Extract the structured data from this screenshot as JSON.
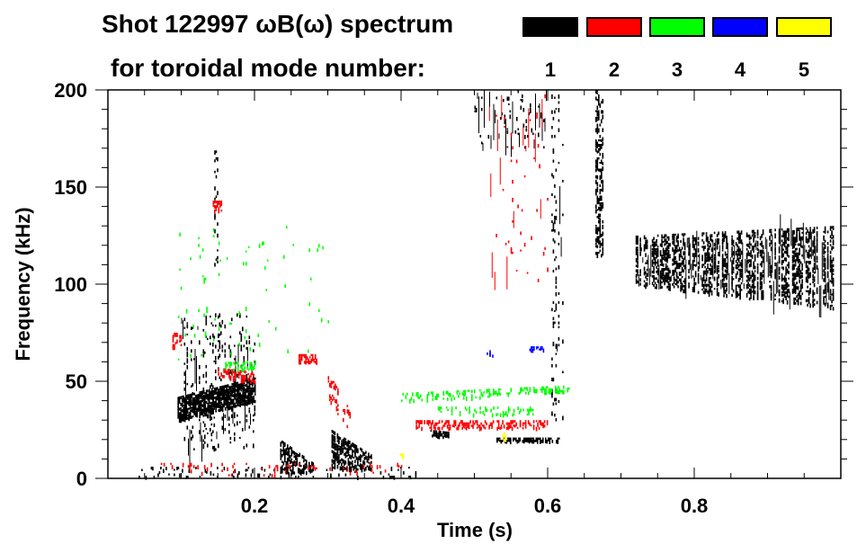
{
  "chart_data": {
    "type": "heatmap",
    "title_line1": "Shot 122997 ωB(ω) spectrum",
    "title_line2": "for toroidal mode number:",
    "xlabel": "Time (s)",
    "ylabel": "Frequency (kHz)",
    "xlim": [
      0,
      1.0
    ],
    "ylim": [
      0,
      200
    ],
    "xticks": [
      0.2,
      0.4,
      0.6,
      0.8
    ],
    "xtick_labels": [
      "0.2",
      "0.4",
      "0.6",
      "0.8"
    ],
    "yticks": [
      0,
      50,
      100,
      150,
      200
    ],
    "ytick_labels": [
      "0",
      "50",
      "100",
      "150",
      "200"
    ],
    "x_minor_step": 0.05,
    "y_minor_step": 10,
    "legend": {
      "placement": "top-right",
      "entries": [
        {
          "label": "1",
          "color": "#000000"
        },
        {
          "label": "2",
          "color": "#ff0000"
        },
        {
          "label": "3",
          "color": "#00ff00"
        },
        {
          "label": "4",
          "color": "#0000ff"
        },
        {
          "label": "5",
          "color": "#ffff00"
        }
      ]
    },
    "features": [
      {
        "mode": 1,
        "t": [
          0.095,
          0.2
        ],
        "f_start": [
          30,
          42
        ],
        "f_end": [
          40,
          52
        ],
        "density": 0.8
      },
      {
        "mode": 1,
        "t": [
          0.1,
          0.2
        ],
        "f_start": [
          15,
          85
        ],
        "f_end": [
          15,
          85
        ],
        "density": 0.12,
        "streaks": true
      },
      {
        "mode": 1,
        "t": [
          0.145,
          0.15
        ],
        "f_start": [
          110,
          170
        ],
        "f_end": [
          110,
          170
        ],
        "density": 0.15
      },
      {
        "mode": 1,
        "t": [
          0.235,
          0.28
        ],
        "f_start": [
          3,
          20
        ],
        "f_end": [
          3,
          8
        ],
        "density": 0.55
      },
      {
        "mode": 1,
        "t": [
          0.305,
          0.36
        ],
        "f_start": [
          5,
          25
        ],
        "f_end": [
          5,
          12
        ],
        "density": 0.55
      },
      {
        "mode": 1,
        "t": [
          0.44,
          0.465
        ],
        "f_start": [
          22,
          25
        ],
        "f_end": [
          22,
          24
        ],
        "density": 0.7
      },
      {
        "mode": 1,
        "t": [
          0.53,
          0.615
        ],
        "f_start": [
          19,
          21
        ],
        "f_end": [
          19,
          21
        ],
        "density": 0.7
      },
      {
        "mode": 1,
        "t": [
          0.605,
          0.62
        ],
        "f_start": [
          30,
          200
        ],
        "f_end": [
          30,
          200
        ],
        "density": 0.1,
        "streaks": true
      },
      {
        "mode": 1,
        "t": [
          0.665,
          0.675
        ],
        "f_start": [
          115,
          200
        ],
        "f_end": [
          115,
          200
        ],
        "density": 0.35
      },
      {
        "mode": 1,
        "t": [
          0.72,
          0.99
        ],
        "f_start": [
          100,
          125
        ],
        "f_end": [
          88,
          130
        ],
        "density": 0.5,
        "streaks": true
      },
      {
        "mode": 1,
        "t": [
          0.04,
          0.42
        ],
        "f_start": [
          1,
          6
        ],
        "f_end": [
          1,
          6
        ],
        "density": 0.08
      },
      {
        "mode": 1,
        "t": [
          0.5,
          0.6
        ],
        "f_start": [
          170,
          200
        ],
        "f_end": [
          170,
          200
        ],
        "density": 0.05,
        "streaks": true
      },
      {
        "mode": 2,
        "t": [
          0.143,
          0.155
        ],
        "f_start": [
          138,
          143
        ],
        "f_end": [
          138,
          143
        ],
        "density": 0.6
      },
      {
        "mode": 2,
        "t": [
          0.15,
          0.2
        ],
        "f_start": [
          53,
          57
        ],
        "f_end": [
          49,
          55
        ],
        "density": 0.5
      },
      {
        "mode": 2,
        "t": [
          0.088,
          0.1
        ],
        "f_start": [
          68,
          75
        ],
        "f_end": [
          68,
          75
        ],
        "density": 0.3
      },
      {
        "mode": 2,
        "t": [
          0.26,
          0.285
        ],
        "f_start": [
          60,
          64
        ],
        "f_end": [
          60,
          64
        ],
        "density": 0.5
      },
      {
        "mode": 2,
        "t": [
          0.3,
          0.33
        ],
        "f_start": [
          40,
          55
        ],
        "f_end": [
          25,
          35
        ],
        "density": 0.15
      },
      {
        "mode": 2,
        "t": [
          0.42,
          0.6
        ],
        "f_start": [
          26,
          30
        ],
        "f_end": [
          26,
          30
        ],
        "density": 0.35
      },
      {
        "mode": 2,
        "t": [
          0.05,
          0.4
        ],
        "f_start": [
          2,
          8
        ],
        "f_end": [
          2,
          8
        ],
        "density": 0.06
      },
      {
        "mode": 2,
        "t": [
          0.52,
          0.6
        ],
        "f_start": [
          100,
          200
        ],
        "f_end": [
          100,
          200
        ],
        "density": 0.02,
        "streaks": true
      },
      {
        "mode": 3,
        "t": [
          0.16,
          0.2
        ],
        "f_start": [
          56,
          60
        ],
        "f_end": [
          56,
          60
        ],
        "density": 0.45
      },
      {
        "mode": 3,
        "t": [
          0.4,
          0.63
        ],
        "f_start": [
          40,
          44
        ],
        "f_end": [
          45,
          48
        ],
        "density": 0.3
      },
      {
        "mode": 3,
        "t": [
          0.45,
          0.58
        ],
        "f_start": [
          33,
          37
        ],
        "f_end": [
          33,
          37
        ],
        "density": 0.2
      },
      {
        "mode": 3,
        "t": [
          0.09,
          0.3
        ],
        "f_start": [
          60,
          130
        ],
        "f_end": [
          60,
          130
        ],
        "density": 0.01
      },
      {
        "mode": 4,
        "t": [
          0.515,
          0.525
        ],
        "f_start": [
          63,
          66
        ],
        "f_end": [
          63,
          66
        ],
        "density": 0.5
      },
      {
        "mode": 4,
        "t": [
          0.575,
          0.595
        ],
        "f_start": [
          66,
          68
        ],
        "f_end": [
          66,
          68
        ],
        "density": 0.5
      },
      {
        "mode": 5,
        "t": [
          0.398,
          0.402
        ],
        "f_start": [
          11,
          14
        ],
        "f_end": [
          11,
          14
        ],
        "density": 0.6
      },
      {
        "mode": 5,
        "t": [
          0.538,
          0.542
        ],
        "f_start": [
          20,
          24
        ],
        "f_end": [
          20,
          24
        ],
        "density": 0.5
      }
    ]
  }
}
